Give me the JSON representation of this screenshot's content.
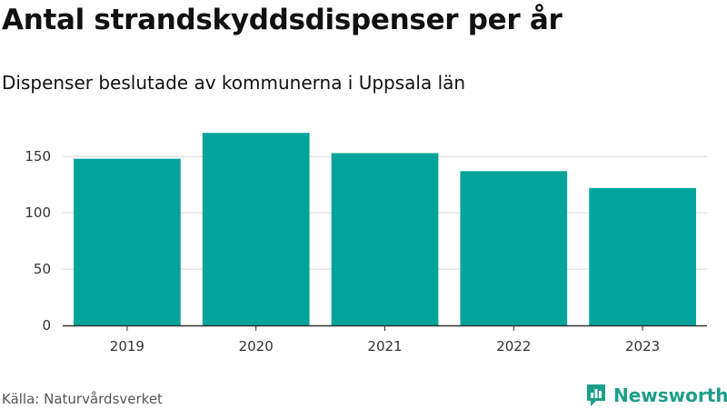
{
  "colors": {
    "bar": "#00A49A",
    "grid": "#d9d9d9",
    "axis": "#333333",
    "brand": "#1b9e8a"
  },
  "header": {
    "title": "Antal strandskyddsdispenser per år",
    "subtitle": "Dispenser beslutade av kommunerna i Uppsala län"
  },
  "footer": {
    "source": "Källa: Naturvårdsverket",
    "brand": "Newsworthy",
    "brand_icon": "bar-chart-speech-icon"
  },
  "chart_data": {
    "type": "bar",
    "title": "Antal strandskyddsdispenser per år",
    "subtitle": "Dispenser beslutade av kommunerna i Uppsala län",
    "xlabel": "",
    "ylabel": "",
    "categories": [
      "2019",
      "2020",
      "2021",
      "2022",
      "2023"
    ],
    "series": [
      {
        "name": "Dispenser",
        "values": [
          148,
          171,
          153,
          137,
          122
        ]
      }
    ],
    "yticks": [
      0,
      50,
      100,
      150
    ],
    "ylim": [
      0,
      176
    ],
    "grid": true,
    "legend": "none"
  }
}
